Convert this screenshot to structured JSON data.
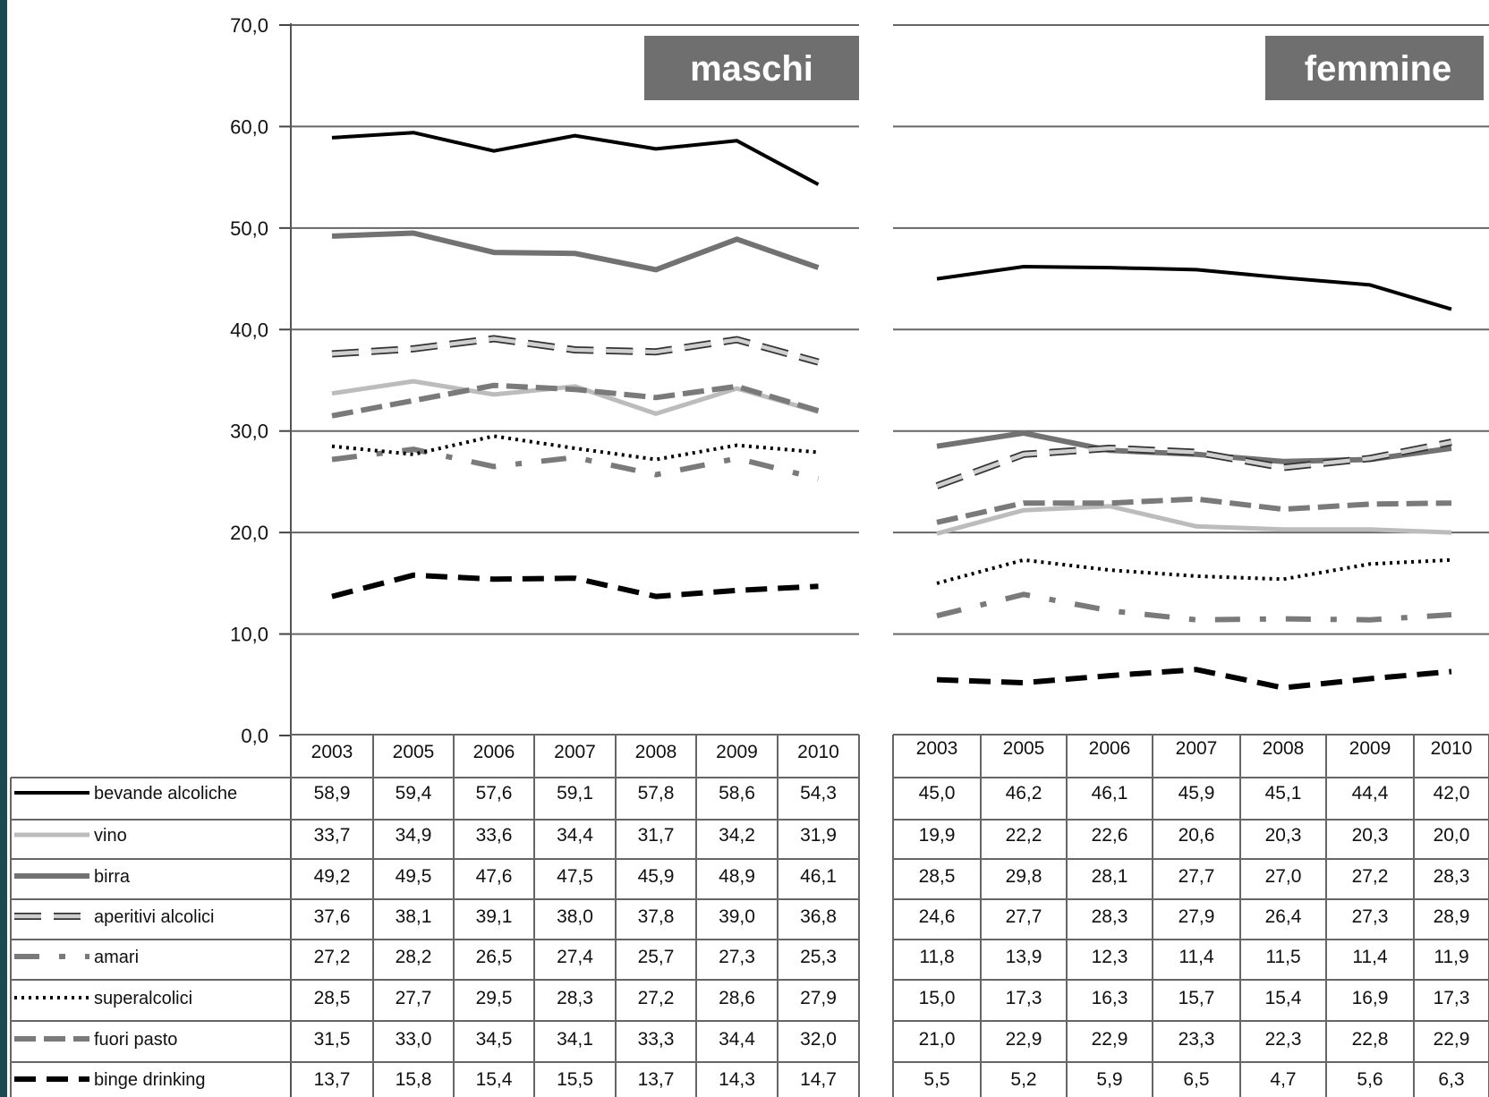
{
  "chart_data": {
    "type": "line",
    "ylim": [
      0,
      70
    ],
    "yticks": [
      "0,0",
      "10,0",
      "20,0",
      "30,0",
      "40,0",
      "50,0",
      "60,0",
      "70,0"
    ],
    "years": [
      "2003",
      "2005",
      "2006",
      "2007",
      "2008",
      "2009",
      "2010"
    ],
    "legend": [
      {
        "key": "bevande",
        "label": "bevande alcoliche",
        "color": "#000000",
        "style": "solid-black"
      },
      {
        "key": "vino",
        "label": "vino",
        "color": "#bfbfbf",
        "style": "solid-light"
      },
      {
        "key": "birra",
        "label": "birra",
        "color": "#707070",
        "style": "solid-gray"
      },
      {
        "key": "aperitivi",
        "label": "aperitivi alcolici",
        "color": "#c8c8c8",
        "style": "outlined-dash"
      },
      {
        "key": "amari",
        "label": "amari",
        "color": "#7a7a7a",
        "style": "dash-dot"
      },
      {
        "key": "superalcolici",
        "label": "superalcolici",
        "color": "#000000",
        "style": "dotted"
      },
      {
        "key": "fuori_pasto",
        "label": "fuori pasto",
        "color": "#7a7a7a",
        "style": "dashed-gray"
      },
      {
        "key": "binge",
        "label": "binge drinking",
        "color": "#000000",
        "style": "dashed-black"
      }
    ],
    "panels": [
      {
        "title": "maschi",
        "series": [
          {
            "key": "bevande",
            "values": [
              "58,9",
              "59,4",
              "57,6",
              "59,1",
              "57,8",
              "58,6",
              "54,3"
            ]
          },
          {
            "key": "vino",
            "values": [
              "33,7",
              "34,9",
              "33,6",
              "34,4",
              "31,7",
              "34,2",
              "31,9"
            ]
          },
          {
            "key": "birra",
            "values": [
              "49,2",
              "49,5",
              "47,6",
              "47,5",
              "45,9",
              "48,9",
              "46,1"
            ]
          },
          {
            "key": "aperitivi",
            "values": [
              "37,6",
              "38,1",
              "39,1",
              "38,0",
              "37,8",
              "39,0",
              "36,8"
            ]
          },
          {
            "key": "amari",
            "values": [
              "27,2",
              "28,2",
              "26,5",
              "27,4",
              "25,7",
              "27,3",
              "25,3"
            ]
          },
          {
            "key": "superalcolici",
            "values": [
              "28,5",
              "27,7",
              "29,5",
              "28,3",
              "27,2",
              "28,6",
              "27,9"
            ]
          },
          {
            "key": "fuori_pasto",
            "values": [
              "31,5",
              "33,0",
              "34,5",
              "34,1",
              "33,3",
              "34,4",
              "32,0"
            ]
          },
          {
            "key": "binge",
            "values": [
              "13,7",
              "15,8",
              "15,4",
              "15,5",
              "13,7",
              "14,3",
              "14,7"
            ]
          }
        ]
      },
      {
        "title": "femmine",
        "series": [
          {
            "key": "bevande",
            "values": [
              "45,0",
              "46,2",
              "46,1",
              "45,9",
              "45,1",
              "44,4",
              "42,0"
            ]
          },
          {
            "key": "vino",
            "values": [
              "19,9",
              "22,2",
              "22,6",
              "20,6",
              "20,3",
              "20,3",
              "20,0"
            ]
          },
          {
            "key": "birra",
            "values": [
              "28,5",
              "29,8",
              "28,1",
              "27,7",
              "27,0",
              "27,2",
              "28,3"
            ]
          },
          {
            "key": "aperitivi",
            "values": [
              "24,6",
              "27,7",
              "28,3",
              "27,9",
              "26,4",
              "27,3",
              "28,9"
            ]
          },
          {
            "key": "amari",
            "values": [
              "11,8",
              "13,9",
              "12,3",
              "11,4",
              "11,5",
              "11,4",
              "11,9"
            ]
          },
          {
            "key": "superalcolici",
            "values": [
              "15,0",
              "17,3",
              "16,3",
              "15,7",
              "15,4",
              "16,9",
              "17,3"
            ]
          },
          {
            "key": "fuori_pasto",
            "values": [
              "21,0",
              "22,9",
              "22,9",
              "23,3",
              "22,3",
              "22,8",
              "22,9"
            ]
          },
          {
            "key": "binge",
            "values": [
              "5,5",
              "5,2",
              "5,9",
              "6,5",
              "4,7",
              "5,6",
              "6,3"
            ]
          }
        ]
      }
    ]
  }
}
